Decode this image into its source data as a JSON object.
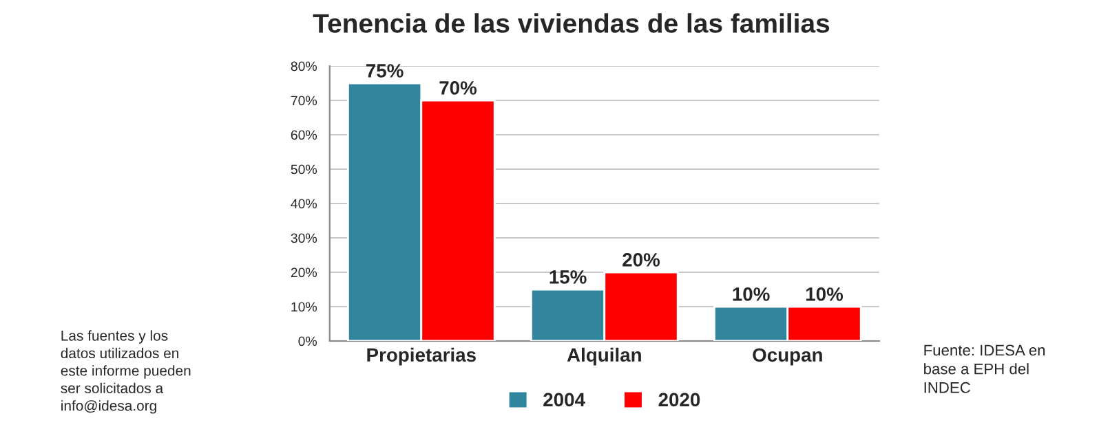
{
  "chart_data": {
    "type": "bar",
    "title": "Tenencia de las viviendas de las familias",
    "categories": [
      "Propietarias",
      "Alquilan",
      "Ocupan"
    ],
    "series": [
      {
        "name": "2004",
        "color": "#31859c",
        "values": [
          75,
          15,
          10
        ],
        "value_labels": [
          "75%",
          "15%",
          "10%"
        ]
      },
      {
        "name": "2020",
        "color": "#ff0000",
        "values": [
          70,
          20,
          10
        ],
        "value_labels": [
          "70%",
          "20%",
          "10%"
        ]
      }
    ],
    "ylim": [
      0,
      80
    ],
    "yticks": [
      {
        "value": 0,
        "label": "0%"
      },
      {
        "value": 10,
        "label": "10%"
      },
      {
        "value": 20,
        "label": "20%"
      },
      {
        "value": 30,
        "label": "30%"
      },
      {
        "value": 40,
        "label": "40%"
      },
      {
        "value": 50,
        "label": "50%"
      },
      {
        "value": 60,
        "label": "60%"
      },
      {
        "value": 70,
        "label": "70%"
      },
      {
        "value": 80,
        "label": "80%"
      }
    ],
    "grid": "y",
    "legend": "bottom",
    "annotations": [
      "Las fuentes y los\ndatos utilizados en\neste informe pueden\nser solicitados a\ninfo@idesa.org",
      "Fuente: IDESA en\nbase a EPH del\nINDEC"
    ]
  }
}
